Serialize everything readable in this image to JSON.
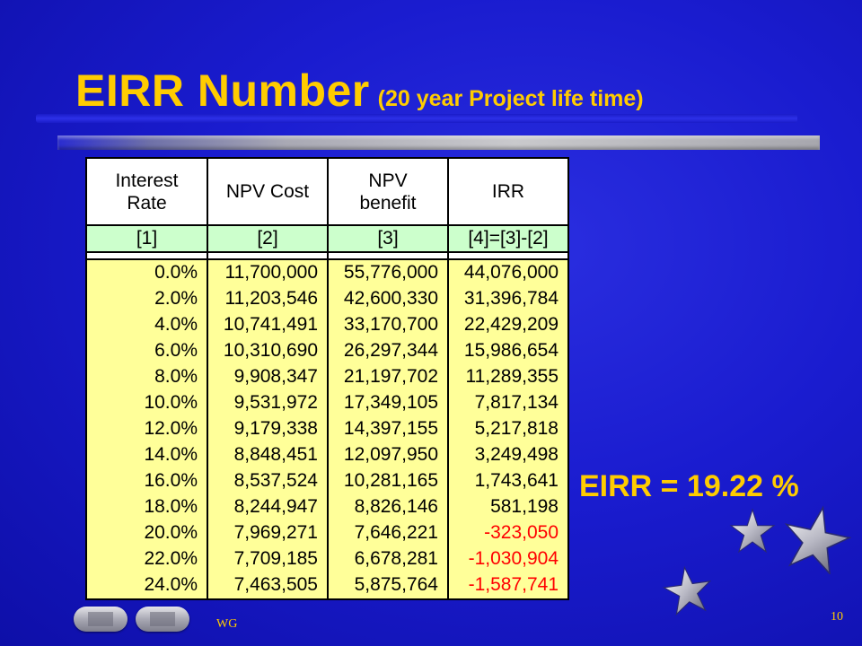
{
  "slide": {
    "title": "EIRR Number",
    "subtitle": "(20 year Project life time)",
    "result": "EIRR = 19.22 %",
    "footer": "WG",
    "page_number": "10"
  },
  "table": {
    "headers": [
      {
        "line1": "Interest",
        "line2": "Rate"
      },
      {
        "line1": "NPV Cost",
        "line2": ""
      },
      {
        "line1": "NPV",
        "line2": "benefit"
      },
      {
        "line1": "IRR",
        "line2": ""
      }
    ],
    "column_refs": [
      "[1]",
      "[2]",
      "[3]",
      "[4]=[3]-[2]"
    ],
    "rows": [
      {
        "rate": "0.0%",
        "cost": "11,700,000",
        "benefit": "55,776,000",
        "irr": "44,076,000",
        "negative": false
      },
      {
        "rate": "2.0%",
        "cost": "11,203,546",
        "benefit": "42,600,330",
        "irr": "31,396,784",
        "negative": false
      },
      {
        "rate": "4.0%",
        "cost": "10,741,491",
        "benefit": "33,170,700",
        "irr": "22,429,209",
        "negative": false
      },
      {
        "rate": "6.0%",
        "cost": "10,310,690",
        "benefit": "26,297,344",
        "irr": "15,986,654",
        "negative": false
      },
      {
        "rate": "8.0%",
        "cost": "9,908,347",
        "benefit": "21,197,702",
        "irr": "11,289,355",
        "negative": false
      },
      {
        "rate": "10.0%",
        "cost": "9,531,972",
        "benefit": "17,349,105",
        "irr": "7,817,134",
        "negative": false
      },
      {
        "rate": "12.0%",
        "cost": "9,179,338",
        "benefit": "14,397,155",
        "irr": "5,217,818",
        "negative": false
      },
      {
        "rate": "14.0%",
        "cost": "8,848,451",
        "benefit": "12,097,950",
        "irr": "3,249,498",
        "negative": false
      },
      {
        "rate": "16.0%",
        "cost": "8,537,524",
        "benefit": "10,281,165",
        "irr": "1,743,641",
        "negative": false
      },
      {
        "rate": "18.0%",
        "cost": "8,244,947",
        "benefit": "8,826,146",
        "irr": "581,198",
        "negative": false
      },
      {
        "rate": "20.0%",
        "cost": "7,969,271",
        "benefit": "7,646,221",
        "irr": "-323,050",
        "negative": true
      },
      {
        "rate": "22.0%",
        "cost": "7,709,185",
        "benefit": "6,678,281",
        "irr": "-1,030,904",
        "negative": true
      },
      {
        "rate": "24.0%",
        "cost": "7,463,505",
        "benefit": "5,875,764",
        "irr": "-1,587,741",
        "negative": true
      }
    ]
  },
  "colors": {
    "title": "#ffcc00",
    "negative_value": "#ff0000",
    "data_cell_bg": "#ffff99",
    "ref_row_bg": "#ccffcc"
  },
  "navigation": {
    "prev_icon": "arrow-left-icon",
    "next_icon": "arrow-right-icon"
  },
  "decorations": [
    "star-icon",
    "star-icon",
    "star-icon"
  ]
}
